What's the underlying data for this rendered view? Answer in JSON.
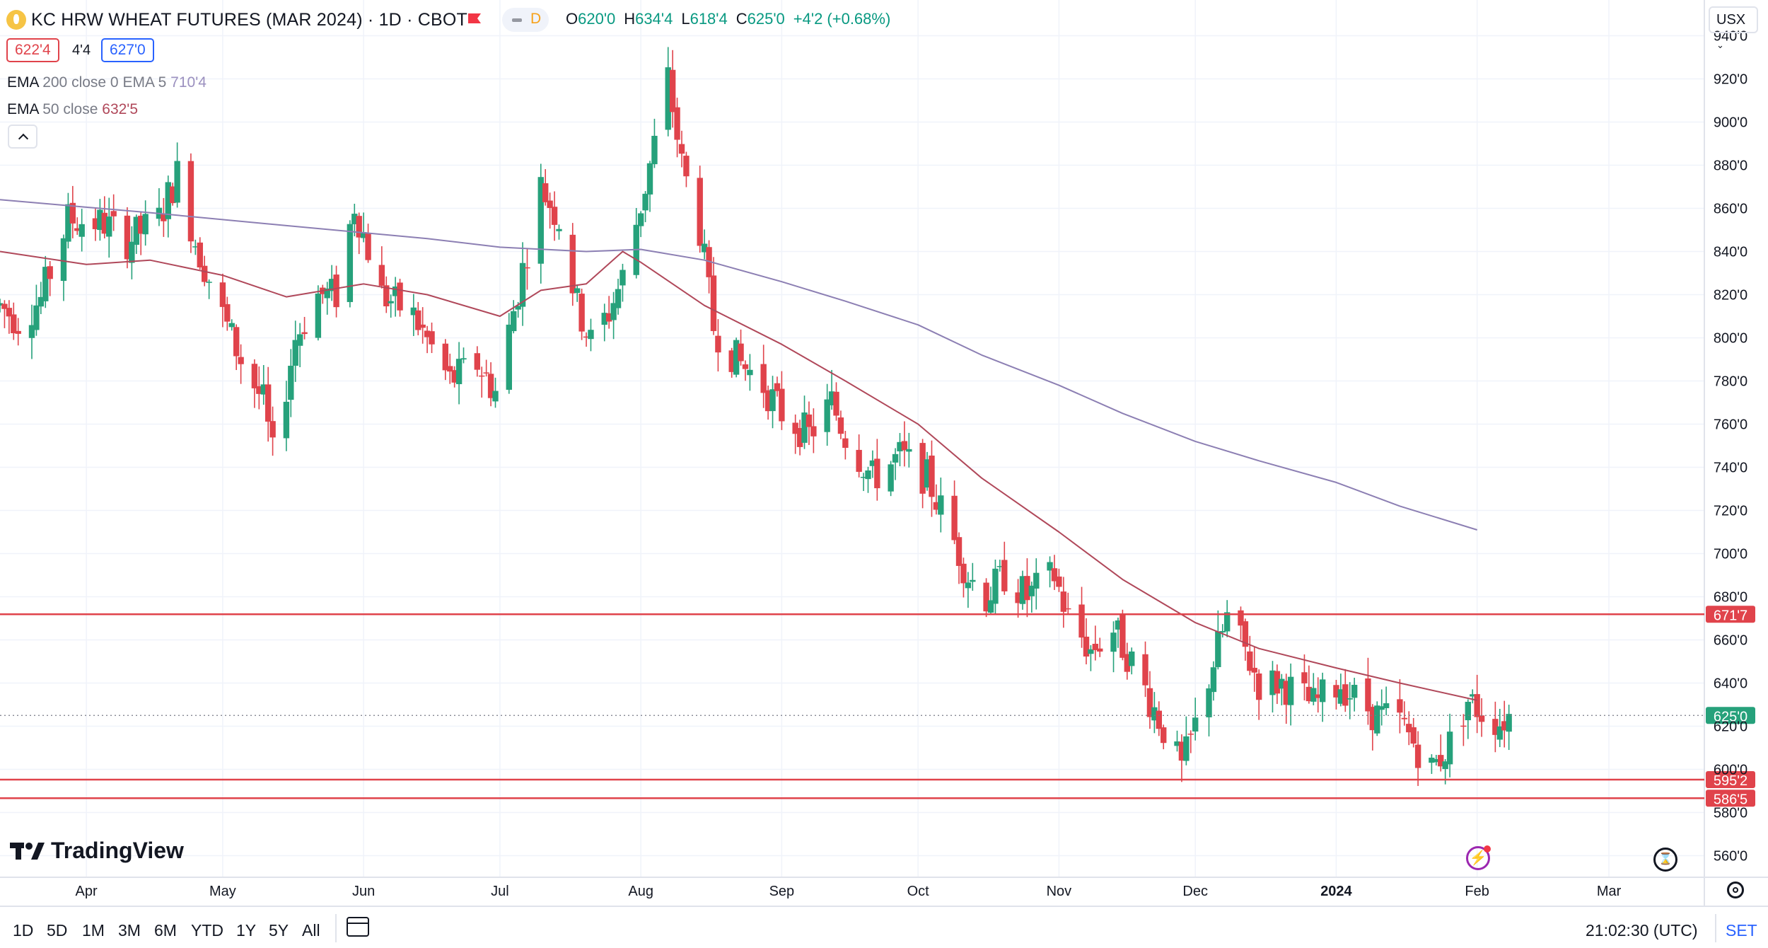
{
  "header": {
    "title": "KC HRW WHEAT FUTURES (MAR 2024) · 1D · CBOT",
    "interval_badge": "D",
    "ohlc": [
      {
        "key": "O",
        "value": "620'0"
      },
      {
        "key": "H",
        "value": "634'4"
      },
      {
        "key": "L",
        "value": "618'4"
      },
      {
        "key": "C",
        "value": "625'0"
      },
      {
        "key": "",
        "value": "+4'2 (+0.68%)"
      }
    ],
    "sell_price": "622'4",
    "spread": "4'4",
    "buy_price": "627'0",
    "currency": "USX"
  },
  "indicators": [
    {
      "label": "EMA",
      "params": "200 close 0 EMA 5",
      "value": "710'4",
      "color": "#8c7fb3"
    },
    {
      "label": "EMA",
      "params": "50 close",
      "value": "632'5",
      "color": "#b0485a"
    }
  ],
  "branding": "TradingView",
  "toolbar": {
    "ranges": [
      "1D",
      "5D",
      "1M",
      "3M",
      "6M",
      "YTD",
      "1Y",
      "5Y",
      "All"
    ],
    "clock": "21:02:30 (UTC)",
    "session": "SET"
  },
  "colors": {
    "up": "#26a17b",
    "down": "#e0434b",
    "hline": "#e0434b",
    "ema200": "#8c7fb3",
    "ema50": "#b0485a",
    "last_price": "#26a17b"
  },
  "chart_data": {
    "type": "candlestick",
    "y_unit": "US cents per bushel (eighths shown after apostrophe)",
    "ylim": [
      550,
      950
    ],
    "y_ticks": [
      {
        "v": 940,
        "label": "940'0"
      },
      {
        "v": 920,
        "label": "920'0"
      },
      {
        "v": 900,
        "label": "900'0"
      },
      {
        "v": 880,
        "label": "880'0"
      },
      {
        "v": 860,
        "label": "860'0"
      },
      {
        "v": 840,
        "label": "840'0"
      },
      {
        "v": 820,
        "label": "820'0"
      },
      {
        "v": 800,
        "label": "800'0"
      },
      {
        "v": 780,
        "label": "780'0"
      },
      {
        "v": 760,
        "label": "760'0"
      },
      {
        "v": 740,
        "label": "740'0"
      },
      {
        "v": 720,
        "label": "720'0"
      },
      {
        "v": 700,
        "label": "700'0"
      },
      {
        "v": 680,
        "label": "680'0"
      },
      {
        "v": 660,
        "label": "660'0"
      },
      {
        "v": 640,
        "label": "640'0"
      },
      {
        "v": 620,
        "label": "620'0"
      },
      {
        "v": 600,
        "label": "600'0"
      },
      {
        "v": 580,
        "label": "580'0"
      },
      {
        "v": 560,
        "label": "560'0"
      }
    ],
    "x_ticks": [
      {
        "label": "Apr",
        "date": "2023-04-01"
      },
      {
        "label": "May",
        "date": "2023-05-01"
      },
      {
        "label": "Jun",
        "date": "2023-06-01"
      },
      {
        "label": "Jul",
        "date": "2023-07-01"
      },
      {
        "label": "Aug",
        "date": "2023-08-01"
      },
      {
        "label": "Sep",
        "date": "2023-09-01"
      },
      {
        "label": "Oct",
        "date": "2023-10-01"
      },
      {
        "label": "Nov",
        "date": "2023-11-01"
      },
      {
        "label": "Dec",
        "date": "2023-12-01"
      },
      {
        "label": "2024",
        "date": "2024-01-01",
        "bold": true
      },
      {
        "label": "Feb",
        "date": "2024-02-01"
      },
      {
        "label": "Mar",
        "date": "2024-03-01"
      }
    ],
    "x_range": [
      "2023-03-13",
      "2024-03-22"
    ],
    "horizontal_lines": [
      {
        "value": 671.875,
        "label": "671'7"
      },
      {
        "value": 595.25,
        "label": "595'2"
      },
      {
        "value": 586.625,
        "label": "586'5"
      }
    ],
    "last_price": {
      "value": 625.0,
      "label": "625'0"
    },
    "ema200": [
      [
        "2023-03-13",
        864
      ],
      [
        "2023-04-15",
        858
      ],
      [
        "2023-05-15",
        852
      ],
      [
        "2023-06-15",
        846
      ],
      [
        "2023-07-01",
        842
      ],
      [
        "2023-07-20",
        840
      ],
      [
        "2023-08-01",
        841
      ],
      [
        "2023-08-15",
        836
      ],
      [
        "2023-09-01",
        826
      ],
      [
        "2023-09-15",
        817
      ],
      [
        "2023-10-01",
        806
      ],
      [
        "2023-10-15",
        792
      ],
      [
        "2023-11-01",
        778
      ],
      [
        "2023-11-15",
        765
      ],
      [
        "2023-12-01",
        752
      ],
      [
        "2023-12-15",
        743
      ],
      [
        "2024-01-01",
        733
      ],
      [
        "2024-01-15",
        722
      ],
      [
        "2024-02-01",
        711
      ]
    ],
    "ema50": [
      [
        "2023-03-13",
        840
      ],
      [
        "2023-04-01",
        834
      ],
      [
        "2023-04-15",
        836
      ],
      [
        "2023-05-01",
        829
      ],
      [
        "2023-05-15",
        819
      ],
      [
        "2023-06-01",
        825
      ],
      [
        "2023-06-15",
        820
      ],
      [
        "2023-07-01",
        810
      ],
      [
        "2023-07-10",
        822
      ],
      [
        "2023-07-20",
        825
      ],
      [
        "2023-07-28",
        840
      ],
      [
        "2023-08-01",
        835
      ],
      [
        "2023-08-15",
        815
      ],
      [
        "2023-09-01",
        797
      ],
      [
        "2023-09-15",
        780
      ],
      [
        "2023-10-01",
        760
      ],
      [
        "2023-10-15",
        735
      ],
      [
        "2023-11-01",
        710
      ],
      [
        "2023-11-15",
        688
      ],
      [
        "2023-12-01",
        668
      ],
      [
        "2023-12-15",
        656
      ],
      [
        "2024-01-01",
        647
      ],
      [
        "2024-01-15",
        640
      ],
      [
        "2024-02-01",
        632
      ]
    ],
    "price_path": [
      [
        "2023-03-13",
        815
      ],
      [
        "2023-03-17",
        808
      ],
      [
        "2023-03-22",
        818
      ],
      [
        "2023-03-28",
        855
      ],
      [
        "2023-04-05",
        853
      ],
      [
        "2023-04-10",
        845
      ],
      [
        "2023-04-17",
        855
      ],
      [
        "2023-04-21",
        876
      ],
      [
        "2023-04-25",
        845
      ],
      [
        "2023-05-01",
        810
      ],
      [
        "2023-05-05",
        790
      ],
      [
        "2023-05-10",
        770
      ],
      [
        "2023-05-12",
        745
      ],
      [
        "2023-05-17",
        800
      ],
      [
        "2023-05-22",
        820
      ],
      [
        "2023-05-26",
        820
      ],
      [
        "2023-05-30",
        862
      ],
      [
        "2023-06-05",
        820
      ],
      [
        "2023-06-12",
        810
      ],
      [
        "2023-06-20",
        780
      ],
      [
        "2023-06-26",
        788
      ],
      [
        "2023-06-30",
        775
      ],
      [
        "2023-07-05",
        822
      ],
      [
        "2023-07-10",
        870
      ],
      [
        "2023-07-14",
        855
      ],
      [
        "2023-07-18",
        815
      ],
      [
        "2023-07-21",
        798
      ],
      [
        "2023-07-25",
        812
      ],
      [
        "2023-07-28",
        828
      ],
      [
        "2023-08-02",
        870
      ],
      [
        "2023-08-07",
        920
      ],
      [
        "2023-08-10",
        880
      ],
      [
        "2023-08-14",
        850
      ],
      [
        "2023-08-17",
        805
      ],
      [
        "2023-08-22",
        790
      ],
      [
        "2023-08-28",
        778
      ],
      [
        "2023-09-01",
        765
      ],
      [
        "2023-09-07",
        755
      ],
      [
        "2023-09-12",
        770
      ],
      [
        "2023-09-15",
        755
      ],
      [
        "2023-09-21",
        735
      ],
      [
        "2023-09-27",
        745
      ],
      [
        "2023-10-03",
        735
      ],
      [
        "2023-10-07",
        716
      ],
      [
        "2023-10-12",
        690
      ],
      [
        "2023-10-16",
        680
      ],
      [
        "2023-10-20",
        690
      ],
      [
        "2023-10-25",
        680
      ],
      [
        "2023-10-31",
        690
      ],
      [
        "2023-11-03",
        670
      ],
      [
        "2023-11-08",
        655
      ],
      [
        "2023-11-13",
        665
      ],
      [
        "2023-11-17",
        650
      ],
      [
        "2023-11-22",
        628
      ],
      [
        "2023-11-28",
        600
      ],
      [
        "2023-12-01",
        620
      ],
      [
        "2023-12-05",
        650
      ],
      [
        "2023-12-08",
        670
      ],
      [
        "2023-12-12",
        655
      ],
      [
        "2023-12-15",
        640
      ],
      [
        "2023-12-20",
        640
      ],
      [
        "2023-12-27",
        630
      ],
      [
        "2024-01-02",
        640
      ],
      [
        "2024-01-05",
        633
      ],
      [
        "2024-01-10",
        625
      ],
      [
        "2024-01-15",
        622
      ],
      [
        "2024-01-22",
        600
      ],
      [
        "2024-01-26",
        612
      ],
      [
        "2024-01-30",
        632
      ],
      [
        "2024-02-03",
        625
      ],
      [
        "2024-02-06",
        622
      ],
      [
        "2024-02-08",
        625
      ]
    ]
  }
}
